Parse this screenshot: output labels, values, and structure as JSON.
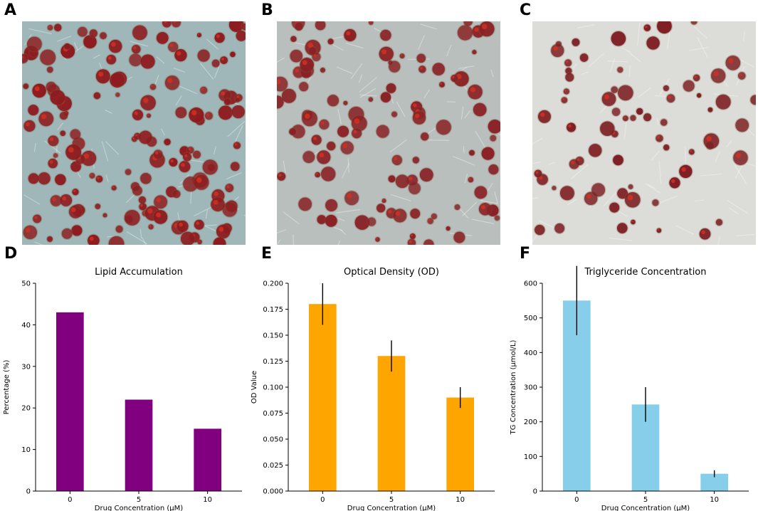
{
  "panels": {
    "a": "A",
    "b": "B",
    "c": "C",
    "d": "D",
    "e": "E",
    "f": "F"
  },
  "micrographs": [
    {
      "panel": "A",
      "background": "#9fb7b8",
      "cell_color": "#8e1a1f",
      "density": "high"
    },
    {
      "panel": "B",
      "background": "#b9bfbd",
      "cell_color": "#8a2025",
      "density": "medium"
    },
    {
      "panel": "C",
      "background": "#dcdcd8",
      "cell_color": "#7e1c22",
      "density": "low"
    }
  ],
  "chart_data": [
    {
      "panel": "D",
      "type": "bar",
      "title": "Lipid Accumulation",
      "xlabel": "Drug Concentration (μM)",
      "ylabel": "Percentage (%)",
      "categories": [
        "0",
        "5",
        "10"
      ],
      "values": [
        43,
        22,
        15
      ],
      "errors": [
        0,
        0,
        0
      ],
      "ylim": [
        0,
        50
      ],
      "yticks": [
        "0",
        "10",
        "20",
        "30",
        "40",
        "50"
      ],
      "color": "#800080",
      "grid": false
    },
    {
      "panel": "E",
      "type": "bar",
      "title": "Optical Density (OD)",
      "xlabel": "Drug Concentration (μM)",
      "ylabel": "OD Value",
      "categories": [
        "0",
        "5",
        "10"
      ],
      "values": [
        0.18,
        0.13,
        0.09
      ],
      "errors": [
        0.02,
        0.015,
        0.01
      ],
      "ylim": [
        0,
        0.2
      ],
      "yticks": [
        "0.000",
        "0.025",
        "0.050",
        "0.075",
        "0.100",
        "0.125",
        "0.150",
        "0.175",
        "0.200"
      ],
      "color": "#ffa500",
      "grid": false
    },
    {
      "panel": "F",
      "type": "bar",
      "title": "Triglyceride Concentration",
      "xlabel": "Drug Concentration (μM)",
      "ylabel": "TG Concentration (μmol/L)",
      "categories": [
        "0",
        "5",
        "10"
      ],
      "values": [
        550,
        250,
        50
      ],
      "errors": [
        100,
        50,
        10
      ],
      "ylim": [
        0,
        600
      ],
      "yticks": [
        "0",
        "100",
        "200",
        "300",
        "400",
        "500",
        "600"
      ],
      "color": "#87ceeb",
      "grid": false
    }
  ]
}
